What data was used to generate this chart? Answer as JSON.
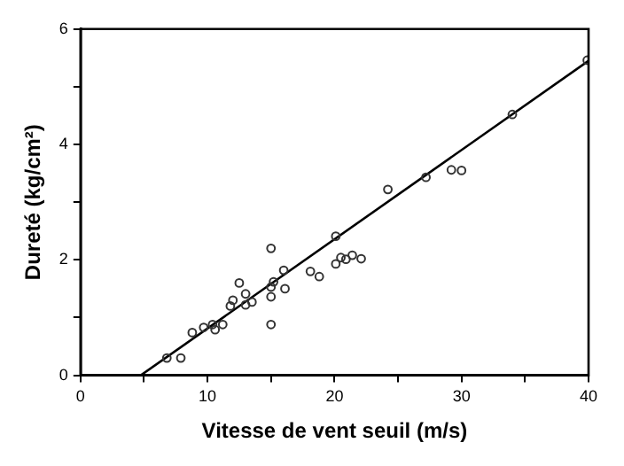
{
  "chart_data": {
    "type": "scatter",
    "xlabel": "Vitesse de vent seuil (m/s)",
    "ylabel": "Dureté (kg/cm²)",
    "xlim": [
      0,
      40
    ],
    "ylim": [
      0,
      6
    ],
    "xticks": [
      0,
      {
        "value": 5,
        "label": null
      },
      10,
      {
        "value": 15,
        "label": null
      },
      20,
      {
        "value": 25,
        "label": null
      },
      30,
      {
        "value": 35,
        "label": null
      },
      40
    ],
    "yticks": [
      0,
      {
        "value": 1,
        "label": null
      },
      2,
      {
        "value": 3,
        "label": null
      },
      4,
      {
        "value": 5,
        "label": null
      },
      6
    ],
    "grid": false,
    "legend": false,
    "marker": "circle",
    "series": [
      {
        "type": "scatter",
        "color": "#333333",
        "x": [
          6.8,
          7.9,
          8.8,
          9.7,
          10.4,
          10.6,
          11.2,
          11.8,
          12.0,
          12.5,
          13.0,
          13.0,
          13.5,
          15.0,
          15.0,
          15.0,
          15.0,
          15.2,
          16.0,
          16.1,
          18.1,
          18.8,
          20.1,
          20.1,
          20.5,
          20.9,
          21.4,
          22.1,
          24.2,
          27.2,
          29.2,
          30.0,
          34.0,
          39.9
        ],
        "values": [
          0.3,
          0.3,
          0.74,
          0.83,
          0.88,
          0.79,
          0.88,
          1.2,
          1.3,
          1.6,
          1.41,
          1.22,
          1.27,
          2.2,
          1.53,
          1.36,
          0.88,
          1.62,
          1.82,
          1.5,
          1.8,
          1.71,
          2.41,
          1.93,
          2.04,
          2.01,
          2.08,
          2.02,
          3.22,
          3.43,
          3.56,
          3.55,
          4.52,
          5.46
        ]
      },
      {
        "type": "line",
        "color": "#000000",
        "x": [
          4.75,
          40
        ],
        "values": [
          0,
          5.45
        ],
        "marker": "none",
        "line_style": "solid"
      }
    ]
  }
}
